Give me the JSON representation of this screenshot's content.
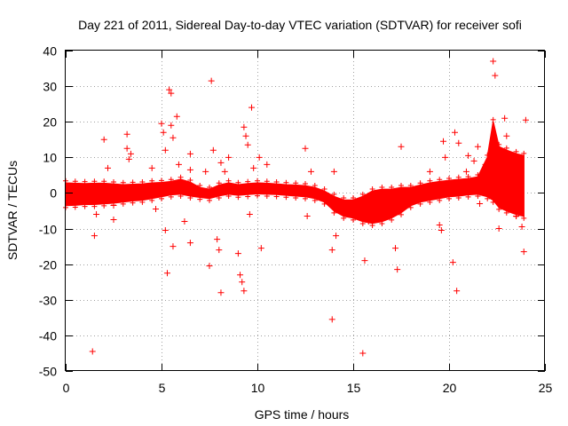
{
  "chart_data": {
    "type": "scatter",
    "title": "Day 221 of 2011, Sidereal Day-to-day VTEC variation (SDTVAR) for receiver sofi",
    "xlabel": "GPS time / hours",
    "ylabel": "SDTVAR / TECUs",
    "xlim": [
      0,
      25
    ],
    "ylim": [
      -50,
      40
    ],
    "xticks": [
      0,
      5,
      10,
      15,
      20,
      25
    ],
    "yticks": [
      40,
      30,
      20,
      10,
      0,
      -10,
      -20,
      -30,
      -40,
      -50
    ],
    "grid": true,
    "marker": "+",
    "series_color": "#ff0000",
    "band": [
      [
        0.0,
        -3.5,
        2.8
      ],
      [
        0.5,
        -3.4,
        2.7
      ],
      [
        1.0,
        -3.2,
        2.6
      ],
      [
        1.5,
        -3.2,
        2.7
      ],
      [
        2.0,
        -3.0,
        2.7
      ],
      [
        2.5,
        -2.8,
        2.5
      ],
      [
        3.0,
        -2.5,
        2.3
      ],
      [
        3.5,
        -2.2,
        2.4
      ],
      [
        4.0,
        -2.0,
        2.5
      ],
      [
        4.5,
        -1.5,
        2.8
      ],
      [
        5.0,
        -1.0,
        2.9
      ],
      [
        5.5,
        -0.5,
        3.2
      ],
      [
        6.0,
        -0.3,
        3.8
      ],
      [
        6.5,
        -0.8,
        3.0
      ],
      [
        7.0,
        -1.2,
        1.5
      ],
      [
        7.5,
        -1.5,
        1.0
      ],
      [
        8.0,
        -0.8,
        2.2
      ],
      [
        8.5,
        -0.3,
        2.8
      ],
      [
        9.0,
        -0.6,
        2.3
      ],
      [
        9.5,
        -0.4,
        2.6
      ],
      [
        10.0,
        -0.2,
        2.8
      ],
      [
        10.5,
        -0.3,
        2.7
      ],
      [
        11.0,
        -0.4,
        2.5
      ],
      [
        11.5,
        -0.6,
        2.3
      ],
      [
        12.0,
        -0.8,
        2.2
      ],
      [
        12.5,
        -1.0,
        2.0
      ],
      [
        13.0,
        -1.5,
        1.5
      ],
      [
        13.5,
        -2.5,
        0.5
      ],
      [
        14.0,
        -5.0,
        -1.0
      ],
      [
        14.5,
        -6.5,
        -2.0
      ],
      [
        15.0,
        -7.0,
        -2.0
      ],
      [
        15.5,
        -8.0,
        -1.0
      ],
      [
        16.0,
        -8.5,
        0.5
      ],
      [
        16.5,
        -8.0,
        1.0
      ],
      [
        17.0,
        -7.0,
        1.0
      ],
      [
        17.5,
        -5.5,
        1.5
      ],
      [
        18.0,
        -3.5,
        1.5
      ],
      [
        18.5,
        -2.5,
        2.2
      ],
      [
        19.0,
        -2.0,
        2.8
      ],
      [
        19.5,
        -1.5,
        3.2
      ],
      [
        20.0,
        -1.0,
        3.5
      ],
      [
        20.5,
        -0.8,
        3.8
      ],
      [
        21.0,
        -0.5,
        4.0
      ],
      [
        21.5,
        -0.3,
        4.5
      ],
      [
        22.0,
        -1.0,
        10.0
      ],
      [
        22.3,
        -2.0,
        20.0
      ],
      [
        22.6,
        -4.0,
        13.0
      ],
      [
        23.0,
        -5.0,
        12.0
      ],
      [
        23.5,
        -6.0,
        11.0
      ],
      [
        23.9,
        -6.5,
        10.5
      ]
    ],
    "outliers": [
      [
        1.4,
        -44.5
      ],
      [
        1.5,
        -12.0
      ],
      [
        1.6,
        -6.0
      ],
      [
        2.0,
        15.0
      ],
      [
        2.2,
        7.0
      ],
      [
        2.5,
        -3.5
      ],
      [
        2.5,
        -7.5
      ],
      [
        3.2,
        16.5
      ],
      [
        3.2,
        12.5
      ],
      [
        3.3,
        9.5
      ],
      [
        3.4,
        11.0
      ],
      [
        4.5,
        7.0
      ],
      [
        4.7,
        -4.5
      ],
      [
        5.0,
        19.5
      ],
      [
        5.1,
        17.0
      ],
      [
        5.2,
        12.0
      ],
      [
        5.2,
        -10.5
      ],
      [
        5.3,
        -22.5
      ],
      [
        5.4,
        29.0
      ],
      [
        5.5,
        28.0
      ],
      [
        5.5,
        19.0
      ],
      [
        5.6,
        15.5
      ],
      [
        5.6,
        -15.0
      ],
      [
        5.8,
        21.5
      ],
      [
        5.9,
        8.0
      ],
      [
        6.2,
        -8.0
      ],
      [
        6.5,
        11.0
      ],
      [
        6.5,
        6.5
      ],
      [
        6.5,
        -14.0
      ],
      [
        7.3,
        6.0
      ],
      [
        7.5,
        -20.5
      ],
      [
        7.6,
        31.5
      ],
      [
        7.7,
        12.0
      ],
      [
        7.9,
        -13.0
      ],
      [
        8.0,
        -16.0
      ],
      [
        8.1,
        -28.0
      ],
      [
        8.1,
        8.5
      ],
      [
        8.3,
        6.0
      ],
      [
        8.5,
        10.0
      ],
      [
        9.0,
        -17.0
      ],
      [
        9.1,
        -23.0
      ],
      [
        9.2,
        -25.0
      ],
      [
        9.3,
        -27.5
      ],
      [
        9.3,
        18.5
      ],
      [
        9.4,
        16.0
      ],
      [
        9.5,
        13.5
      ],
      [
        9.6,
        -6.0
      ],
      [
        9.7,
        24.0
      ],
      [
        9.8,
        7.0
      ],
      [
        10.1,
        10.0
      ],
      [
        10.2,
        -15.5
      ],
      [
        10.5,
        8.0
      ],
      [
        12.5,
        12.5
      ],
      [
        12.6,
        -6.5
      ],
      [
        12.8,
        6.0
      ],
      [
        13.9,
        -35.5
      ],
      [
        13.9,
        -16.0
      ],
      [
        14.0,
        6.0
      ],
      [
        14.1,
        -12.0
      ],
      [
        15.5,
        -45.0
      ],
      [
        15.6,
        -19.0
      ],
      [
        15.8,
        -8.0
      ],
      [
        17.2,
        -15.5
      ],
      [
        17.3,
        -21.5
      ],
      [
        17.5,
        13.0
      ],
      [
        19.0,
        6.0
      ],
      [
        19.5,
        -9.0
      ],
      [
        19.6,
        -10.5
      ],
      [
        19.7,
        14.5
      ],
      [
        19.8,
        10.0
      ],
      [
        20.2,
        -19.5
      ],
      [
        20.3,
        17.0
      ],
      [
        20.4,
        -27.5
      ],
      [
        20.5,
        14.0
      ],
      [
        20.9,
        6.0
      ],
      [
        21.0,
        10.5
      ],
      [
        21.3,
        9.0
      ],
      [
        21.5,
        13.0
      ],
      [
        21.6,
        -3.0
      ],
      [
        21.9,
        8.0
      ],
      [
        22.3,
        37.0
      ],
      [
        22.4,
        33.0
      ],
      [
        22.6,
        -10.0
      ],
      [
        22.9,
        21.0
      ],
      [
        23.0,
        16.0
      ],
      [
        23.5,
        -6.5
      ],
      [
        23.8,
        -9.5
      ],
      [
        23.9,
        -16.5
      ],
      [
        24.0,
        20.5
      ]
    ]
  }
}
